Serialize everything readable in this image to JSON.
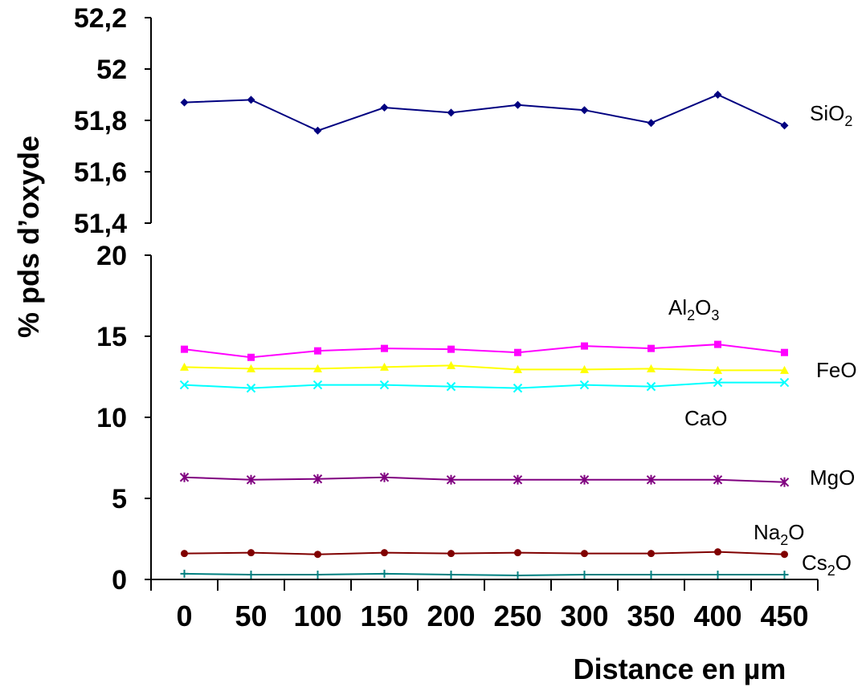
{
  "chart_data": [
    {
      "type": "line",
      "panel": "upper",
      "y_ticks": [
        "51,4",
        "51,6",
        "51,8",
        "52",
        "52,2"
      ],
      "ylim": [
        51.4,
        52.2
      ],
      "x": [
        0,
        50,
        100,
        150,
        200,
        250,
        300,
        350,
        400,
        450
      ],
      "series": [
        {
          "name": "SiO",
          "sub": "2",
          "color": "#000080",
          "marker": "diamond",
          "values": [
            51.87,
            51.88,
            51.76,
            51.85,
            51.83,
            51.86,
            51.84,
            51.79,
            51.9,
            51.78
          ]
        }
      ]
    },
    {
      "type": "line",
      "panel": "lower",
      "y_ticks": [
        "0",
        "5",
        "10",
        "15",
        "20"
      ],
      "ylim": [
        0,
        20
      ],
      "x": [
        0,
        50,
        100,
        150,
        200,
        250,
        300,
        350,
        400,
        450
      ],
      "series": [
        {
          "name": "Al",
          "sub": "2",
          "name2": "O",
          "sub2": "3",
          "color": "#ff00ff",
          "marker": "square",
          "values": [
            14.2,
            13.7,
            14.1,
            14.25,
            14.2,
            14.0,
            14.4,
            14.25,
            14.5,
            14.0
          ]
        },
        {
          "name": "FeO",
          "color": "#ffff00",
          "marker": "triangle",
          "values": [
            13.1,
            13.0,
            13.0,
            13.1,
            13.2,
            12.95,
            12.95,
            13.0,
            12.9,
            12.9
          ]
        },
        {
          "name": "CaO",
          "color": "#00ffff",
          "marker": "x",
          "values": [
            12.0,
            11.8,
            12.0,
            12.0,
            11.9,
            11.8,
            12.0,
            11.9,
            12.15,
            12.15
          ]
        },
        {
          "name": "MgO",
          "color": "#800080",
          "marker": "star",
          "values": [
            6.3,
            6.15,
            6.2,
            6.3,
            6.15,
            6.15,
            6.15,
            6.15,
            6.15,
            6.0
          ]
        },
        {
          "name": "Na",
          "sub": "2",
          "name2": "O",
          "color": "#800000",
          "marker": "circle",
          "values": [
            1.6,
            1.65,
            1.55,
            1.65,
            1.6,
            1.65,
            1.6,
            1.6,
            1.7,
            1.55
          ]
        },
        {
          "name": "Cs",
          "sub": "2",
          "name2": "O",
          "color": "#008080",
          "marker": "plus",
          "values": [
            0.35,
            0.3,
            0.3,
            0.35,
            0.3,
            0.25,
            0.3,
            0.3,
            0.3,
            0.3
          ]
        }
      ]
    }
  ],
  "x_tick_labels": [
    "0",
    "50",
    "100",
    "150",
    "200",
    "250",
    "300",
    "350",
    "400",
    "450"
  ],
  "xlabel": "Distance en µm",
  "ylabel": "% pds d’oxyde"
}
